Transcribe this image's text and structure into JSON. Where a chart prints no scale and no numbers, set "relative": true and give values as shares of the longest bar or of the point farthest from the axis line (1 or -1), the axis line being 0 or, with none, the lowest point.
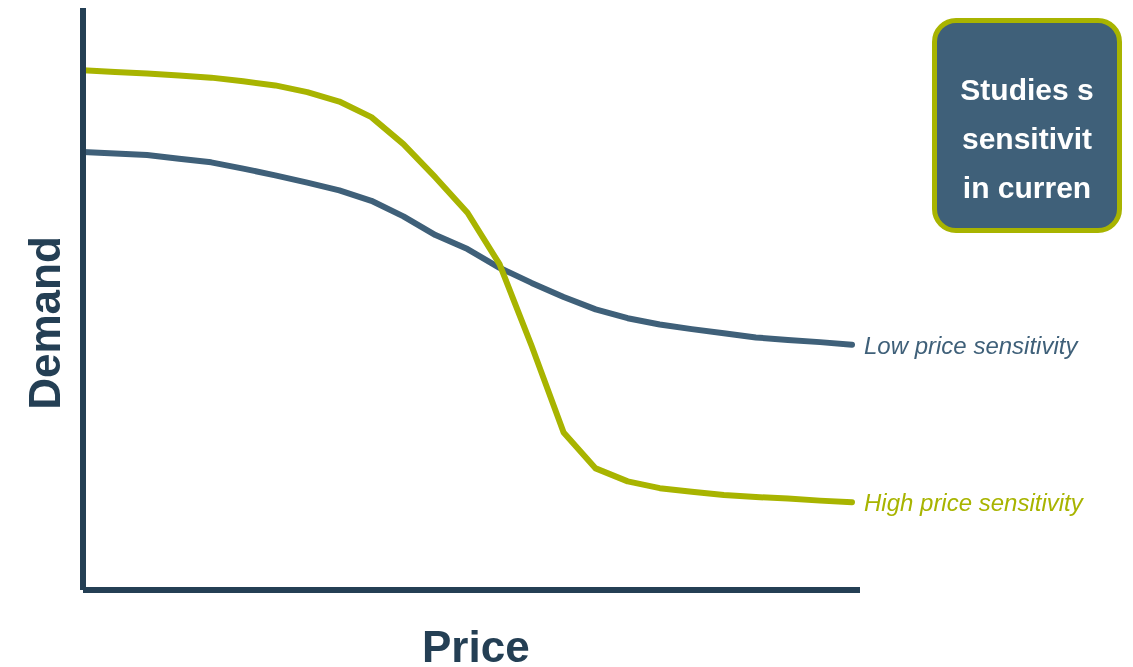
{
  "chart_data": {
    "type": "line",
    "relative": true,
    "xlabel": "Price",
    "ylabel": "Demand",
    "marker": "none",
    "line_style": "solid",
    "annotations": [
      "Studies s",
      "sensitivit",
      "in curren"
    ],
    "categories": [
      null,
      null,
      null,
      null,
      null,
      null,
      null,
      null,
      null,
      null,
      null,
      null,
      null,
      null,
      null,
      null,
      null,
      null,
      null,
      null,
      null,
      null,
      null,
      null,
      null
    ],
    "series": [
      {
        "name": "Low price sensitivity",
        "color": "#3f6079",
        "values": [
          0.843,
          0.84,
          0.837,
          0.83,
          0.823,
          0.811,
          0.798,
          0.784,
          0.769,
          0.749,
          0.719,
          0.683,
          0.656,
          0.62,
          0.591,
          0.564,
          0.54,
          0.523,
          0.511,
          0.502,
          0.494,
          0.486,
          0.481,
          0.477,
          0.472
        ]
      },
      {
        "name": "High price sensitivity",
        "color": "#a8b400",
        "values": [
          1,
          0.997,
          0.994,
          0.99,
          0.986,
          0.979,
          0.971,
          0.958,
          0.94,
          0.91,
          0.858,
          0.794,
          0.726,
          0.627,
          0.47,
          0.303,
          0.234,
          0.209,
          0.196,
          0.189,
          0.183,
          0.179,
          0.176,
          0.172,
          0.169
        ]
      }
    ]
  }
}
